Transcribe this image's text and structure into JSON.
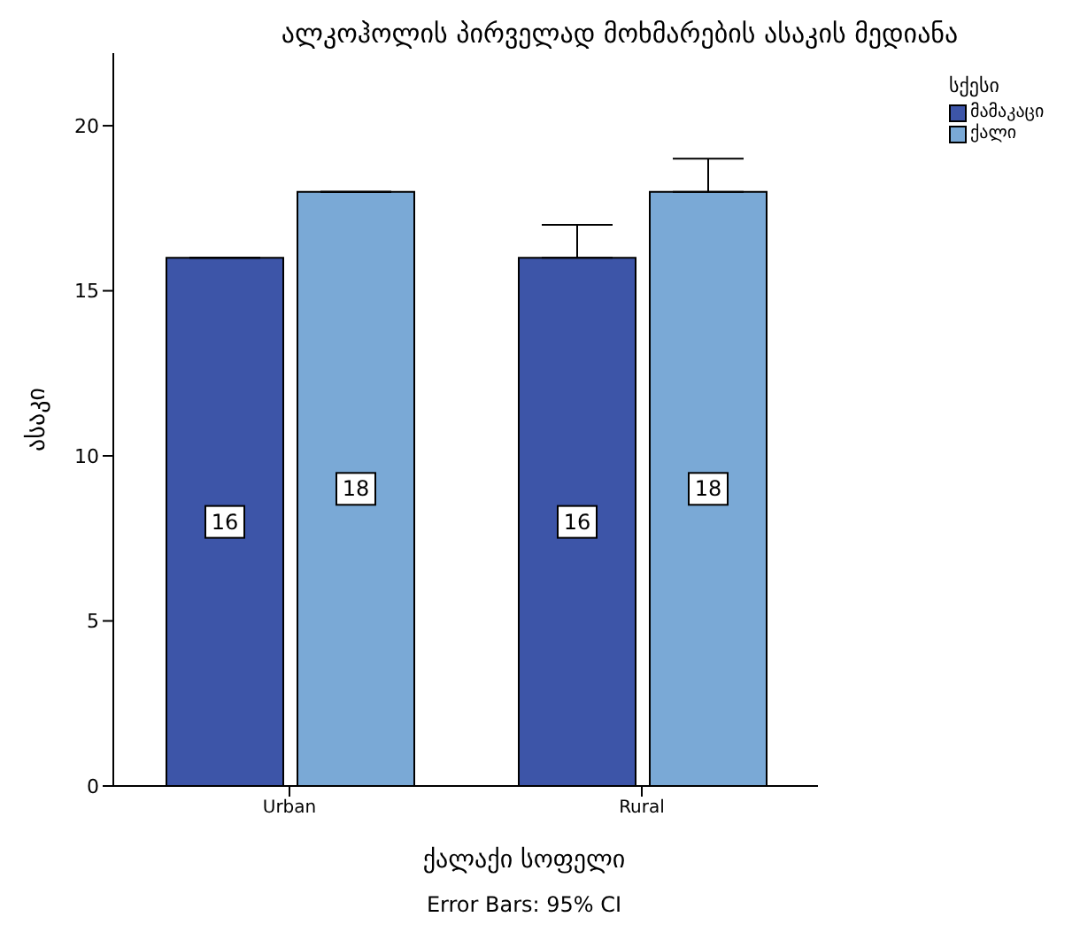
{
  "chart_data": {
    "type": "bar",
    "title": "ალკოჰოლის პირველად მოხმარების ასაკის მედიანა",
    "xlabel": "ქალაქი          სოფელი",
    "ylabel": "ასაკი",
    "legend_title": "სქესი",
    "annotations": [
      "Error Bars: 95% CI"
    ],
    "categories": [
      "Urban",
      "Rural"
    ],
    "series": [
      {
        "name": "მამაკაცი",
        "color": "#3d55a8",
        "values": [
          16,
          16
        ],
        "errors": [
          [
            16,
            16
          ],
          [
            16,
            17
          ]
        ]
      },
      {
        "name": "ქალი",
        "color": "#7aa9d6",
        "values": [
          18,
          18
        ],
        "errors": [
          [
            18,
            18
          ],
          [
            18,
            19
          ]
        ]
      }
    ],
    "ylim": [
      0,
      22.2
    ],
    "yticks": [
      0,
      5,
      10,
      15,
      20
    ],
    "data_labels": true,
    "legend": "top right",
    "grid": false
  }
}
